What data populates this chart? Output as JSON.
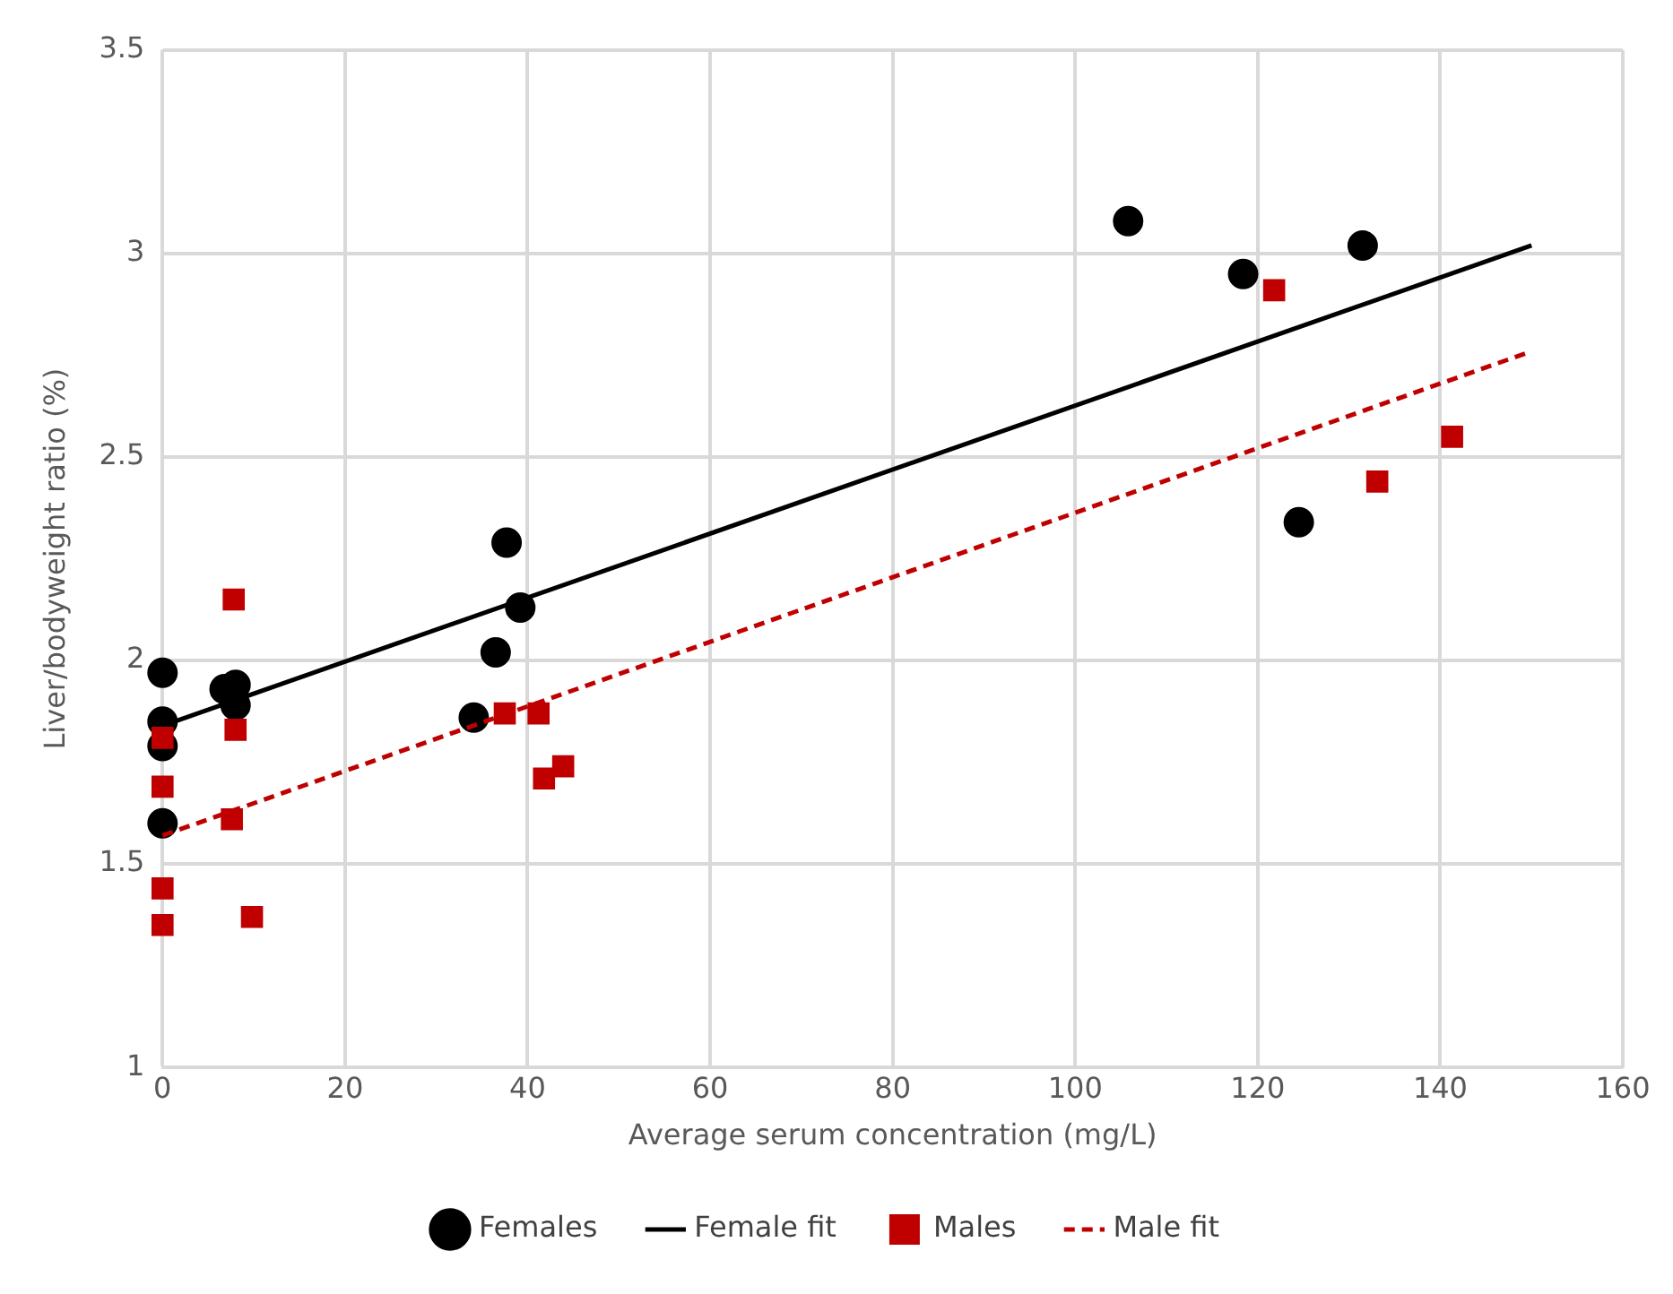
{
  "chart_data": {
    "type": "scatter",
    "xlabel": "Average serum concentration (mg/L)",
    "ylabel": "Liver/bodyweight ratio (%)",
    "xlim": [
      0,
      160
    ],
    "xticks": [
      0,
      20,
      40,
      60,
      80,
      100,
      120,
      140,
      160
    ],
    "ylim": [
      1,
      3.5
    ],
    "yticks": [
      1,
      1.5,
      2,
      2.5,
      3,
      3.5
    ],
    "grid": true,
    "legend": "bottom",
    "series": [
      {
        "name": "Females",
        "color": "#000000",
        "marker": "circle",
        "x": [
          0,
          0,
          0,
          0,
          6.8,
          8.0,
          8.0,
          34.1,
          36.5,
          37.7,
          39.2,
          105.8,
          118.4,
          124.5,
          131.5
        ],
        "values": [
          1.97,
          1.85,
          1.79,
          1.6,
          1.93,
          1.94,
          1.89,
          1.86,
          2.02,
          2.29,
          2.13,
          3.08,
          2.95,
          2.34,
          3.02
        ]
      },
      {
        "name": "Female fit",
        "type": "line",
        "color": "#000000",
        "line_style": "solid",
        "marker": "none",
        "x": [
          0,
          150
        ],
        "values": [
          1.84,
          3.02
        ]
      },
      {
        "name": "Males",
        "color": "#c00000",
        "marker": "square",
        "x": [
          7.8,
          0,
          8.0,
          0,
          7.6,
          0,
          0,
          9.8,
          37.5,
          41.2,
          41.8,
          43.9,
          121.8,
          133.1,
          141.3
        ],
        "values": [
          2.15,
          1.81,
          1.83,
          1.69,
          1.61,
          1.44,
          1.35,
          1.37,
          1.87,
          1.87,
          1.71,
          1.74,
          2.91,
          2.44,
          2.55
        ]
      },
      {
        "name": "Male fit",
        "type": "line",
        "color": "#c00000",
        "line_style": "dashed",
        "marker": "none",
        "x": [
          0,
          150
        ],
        "values": [
          1.57,
          2.76
        ]
      }
    ]
  }
}
